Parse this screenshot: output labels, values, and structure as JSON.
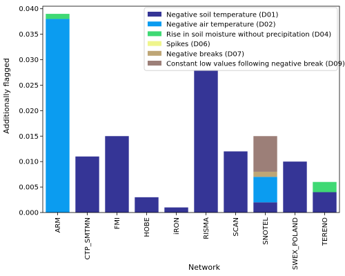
{
  "chart_data": {
    "type": "bar",
    "stacked": true,
    "xlabel": "Network",
    "ylabel": "Additionally flagged",
    "ylim": [
      0,
      0.0405
    ],
    "yticks": [
      0.0,
      0.005,
      0.01,
      0.015,
      0.02,
      0.025,
      0.03,
      0.035,
      0.04
    ],
    "ytick_labels": [
      "0.000",
      "0.005",
      "0.010",
      "0.015",
      "0.020",
      "0.025",
      "0.030",
      "0.035",
      "0.040"
    ],
    "grid": false,
    "legend_position": "top-right",
    "categories": [
      "ARM",
      "CTP_SMTMN",
      "FMI",
      "HOBE",
      "iRON",
      "RISMA",
      "SCAN",
      "SNOTEL",
      "SWEX_POLAND",
      "TERENO"
    ],
    "series": [
      {
        "name": "Negative soil temperature (D01)",
        "color": "#353596",
        "values": [
          0,
          0.011,
          0.015,
          0.003,
          0.001,
          0.028,
          0.012,
          0.002,
          0.01,
          0.004
        ]
      },
      {
        "name": "Negative air temperature (D02)",
        "color": "#0b9cf0",
        "values": [
          0.038,
          0,
          0,
          0,
          0,
          0,
          0,
          0.005,
          0,
          0
        ]
      },
      {
        "name": "Rise in soil moisture without precipitation (D04)",
        "color": "#3fd974",
        "values": [
          0.001,
          0,
          0,
          0,
          0,
          0,
          0,
          0,
          0,
          0.002
        ]
      },
      {
        "name": "Spikes (D06)",
        "color": "#eff58c",
        "values": [
          0,
          0,
          0,
          0,
          0,
          0,
          0,
          0,
          0,
          0
        ]
      },
      {
        "name": "Negative breaks (D07)",
        "color": "#bea676",
        "values": [
          0,
          0,
          0,
          0,
          0,
          0,
          0,
          0.001,
          0,
          0
        ]
      },
      {
        "name": "Constant low values following negative break (D09)",
        "color": "#9c7f78",
        "values": [
          0,
          0,
          0,
          0,
          0,
          0,
          0,
          0.007,
          0,
          0
        ]
      }
    ]
  }
}
